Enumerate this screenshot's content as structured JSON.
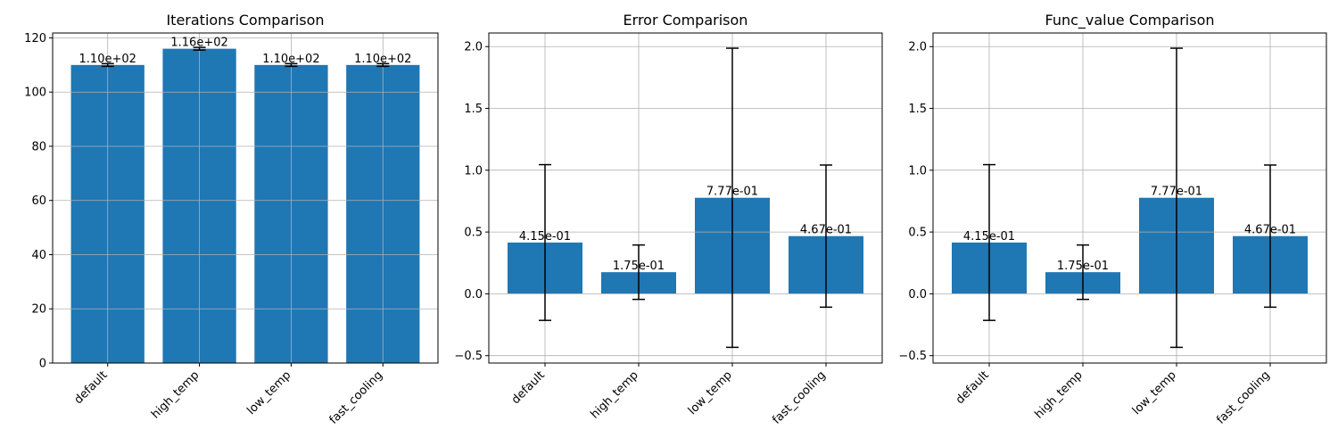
{
  "colors": {
    "bar": "#1f77b4",
    "grid": "#b0b0b0",
    "errorbar": "#000000",
    "axes": "#000000"
  },
  "chart_data": [
    {
      "type": "bar",
      "title": "Iterations Comparison",
      "categories": [
        "default",
        "high_temp",
        "low_temp",
        "fast_cooling"
      ],
      "values": [
        110,
        116,
        110,
        110
      ],
      "errors": [
        0.5,
        0.5,
        0.5,
        0.5
      ],
      "data_labels": [
        "1.10e+02",
        "1.16e+02",
        "1.10e+02",
        "1.10e+02"
      ],
      "ylim": [
        0,
        121.8
      ],
      "yticks": [
        0,
        20,
        40,
        60,
        80,
        100,
        120
      ],
      "ytick_labels": [
        "0",
        "20",
        "40",
        "60",
        "80",
        "100",
        "120"
      ],
      "grid": true
    },
    {
      "type": "bar",
      "title": "Error Comparison",
      "categories": [
        "default",
        "high_temp",
        "low_temp",
        "fast_cooling"
      ],
      "values": [
        0.415,
        0.175,
        0.777,
        0.467
      ],
      "errors": [
        0.63,
        0.22,
        1.21,
        0.575
      ],
      "data_labels": [
        "4.15e-01",
        "1.75e-01",
        "7.77e-01",
        "4.67e-01"
      ],
      "ylim": [
        -0.56,
        2.11
      ],
      "yticks": [
        -0.5,
        0.0,
        0.5,
        1.0,
        1.5,
        2.0
      ],
      "ytick_labels": [
        "−0.5",
        "0.0",
        "0.5",
        "1.0",
        "1.5",
        "2.0"
      ],
      "grid": true
    },
    {
      "type": "bar",
      "title": "Func_value Comparison",
      "categories": [
        "default",
        "high_temp",
        "low_temp",
        "fast_cooling"
      ],
      "values": [
        0.415,
        0.175,
        0.777,
        0.467
      ],
      "errors": [
        0.63,
        0.22,
        1.21,
        0.575
      ],
      "data_labels": [
        "4.15e-01",
        "1.75e-01",
        "7.77e-01",
        "4.67e-01"
      ],
      "ylim": [
        -0.56,
        2.11
      ],
      "yticks": [
        -0.5,
        0.0,
        0.5,
        1.0,
        1.5,
        2.0
      ],
      "ytick_labels": [
        "−0.5",
        "0.0",
        "0.5",
        "1.0",
        "1.5",
        "2.0"
      ],
      "grid": true
    }
  ]
}
